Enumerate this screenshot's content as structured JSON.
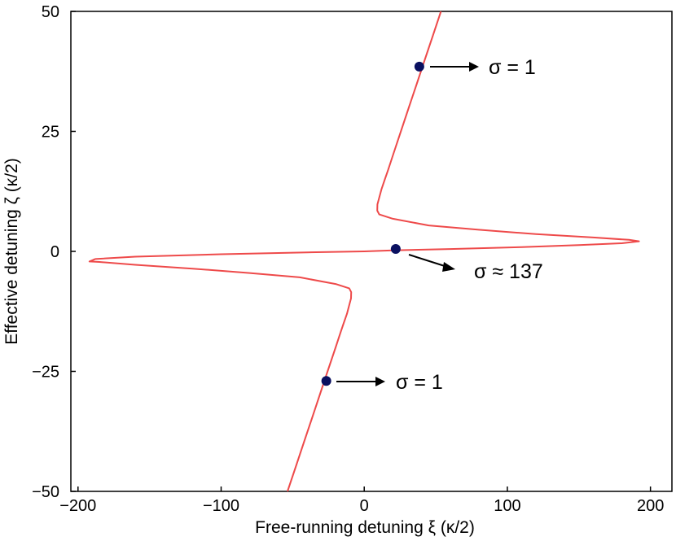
{
  "chart_data": {
    "type": "line",
    "title": "",
    "xlabel": "Free-running detuning ξ (κ/2)",
    "ylabel": "Effective detuning ζ (κ/2)",
    "xlim": [
      -205,
      215
    ],
    "ylim": [
      -50,
      50
    ],
    "xticks": [
      -200,
      -100,
      0,
      100,
      200
    ],
    "xtick_labels": [
      "−200",
      "−100",
      "0",
      "100",
      "200"
    ],
    "yticks": [
      -50,
      -25,
      0,
      25,
      50
    ],
    "ytick_labels": [
      "−50",
      "−25",
      "0",
      "25",
      "50"
    ],
    "grid": false,
    "legend": "none",
    "series": [
      {
        "color": "#ee4a4a",
        "points": [
          [
            -53.6,
            -50
          ],
          [
            -48,
            -45
          ],
          [
            -42.4,
            -40
          ],
          [
            -36.8,
            -35
          ],
          [
            -31.2,
            -30
          ],
          [
            -25.6,
            -25
          ],
          [
            -20,
            -20
          ],
          [
            -16.7,
            -17
          ],
          [
            -14.4,
            -15
          ],
          [
            -12.1,
            -13
          ],
          [
            -10.3,
            -11
          ],
          [
            -9.2,
            -9.8
          ],
          [
            -9.1,
            -8.5
          ],
          [
            -10.5,
            -7.7
          ],
          [
            -20,
            -6.8
          ],
          [
            -45,
            -5.4
          ],
          [
            -80,
            -4.5
          ],
          [
            -120,
            -3.6
          ],
          [
            -160,
            -2.8
          ],
          [
            -185,
            -2.2
          ],
          [
            -192,
            -2.1
          ],
          [
            -188,
            -1.6
          ],
          [
            -160,
            -1.1
          ],
          [
            -100,
            -0.6
          ],
          [
            -40,
            -0.2
          ],
          [
            0,
            0
          ],
          [
            20,
            0.2
          ],
          [
            60,
            0.5
          ],
          [
            110,
            0.9
          ],
          [
            150,
            1.3
          ],
          [
            180,
            1.7
          ],
          [
            192,
            2.1
          ],
          [
            185,
            2.4
          ],
          [
            160,
            2.9
          ],
          [
            120,
            3.6
          ],
          [
            80,
            4.5
          ],
          [
            45,
            5.4
          ],
          [
            20,
            6.8
          ],
          [
            10.5,
            7.7
          ],
          [
            9.1,
            8.5
          ],
          [
            9.2,
            9.8
          ],
          [
            10.3,
            11
          ],
          [
            12.1,
            13
          ],
          [
            14.4,
            15
          ],
          [
            16.7,
            17
          ],
          [
            20,
            20
          ],
          [
            25.6,
            25
          ],
          [
            31.2,
            30
          ],
          [
            36.8,
            35
          ],
          [
            42.4,
            40
          ],
          [
            48,
            45
          ],
          [
            53.6,
            50
          ]
        ]
      }
    ],
    "markers": [
      {
        "x": 38.5,
        "y": 38.5,
        "color": "#0a1060",
        "label": "σ = 1"
      },
      {
        "x": 22,
        "y": 0.5,
        "color": "#0a1060",
        "label": "σ ≈ 137"
      },
      {
        "x": -26.5,
        "y": -27,
        "color": "#0a1060",
        "label": "σ = 1"
      }
    ]
  }
}
